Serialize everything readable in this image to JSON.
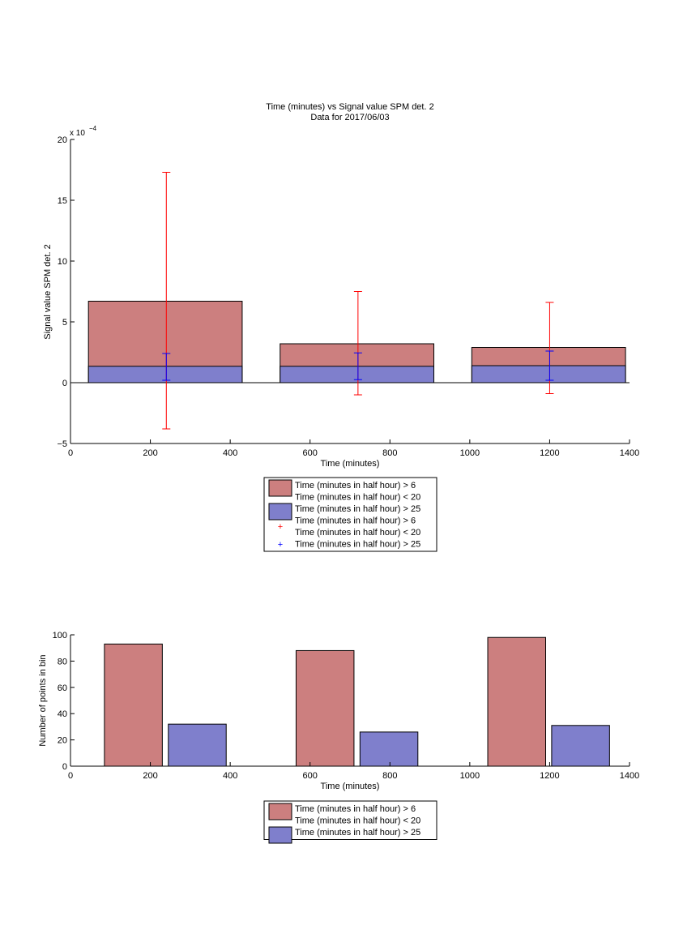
{
  "chart_data": [
    {
      "type": "bar",
      "title": "Time (minutes) vs Signal value SPM det. 2",
      "subtitle": "Data for 2017/06/03",
      "xlabel": "Time (minutes)",
      "ylabel": "Signal value SPM det. 2",
      "exponent_label": "x 10",
      "exponent_power": "−4",
      "xlim": [
        0,
        1400
      ],
      "ylim": [
        -5,
        20
      ],
      "scale_factor": 0.0001,
      "xticks": [
        0,
        200,
        400,
        600,
        800,
        1000,
        1200,
        1400
      ],
      "yticks": [
        -5,
        0,
        5,
        10,
        15,
        20
      ],
      "grid": false,
      "legend_position": "below",
      "series": [
        {
          "name": "Time (minutes in half hour) > 6\nTime (minutes in half hour) < 20",
          "color": "#cc7f7f",
          "bars": [
            {
              "x_start": 45,
              "x_end": 430,
              "value": 6.7
            },
            {
              "x_start": 525,
              "x_end": 910,
              "value": 3.2
            },
            {
              "x_start": 1005,
              "x_end": 1390,
              "value": 2.9
            }
          ]
        },
        {
          "name": "Time (minutes in half hour) > 25",
          "color": "#7f7fcc",
          "bars": [
            {
              "x_start": 45,
              "x_end": 430,
              "value": 1.35
            },
            {
              "x_start": 525,
              "x_end": 910,
              "value": 1.35
            },
            {
              "x_start": 1005,
              "x_end": 1390,
              "value": 1.4
            }
          ]
        }
      ],
      "error_series": [
        {
          "name": "Time (minutes in half hour) > 6\nTime (minutes in half hour) < 20",
          "color": "#ff0000",
          "marker": "+",
          "points": [
            {
              "x": 240,
              "y": 6.7,
              "low": -3.8,
              "high": 17.3
            },
            {
              "x": 720,
              "y": 3.2,
              "low": -1.0,
              "high": 7.5
            },
            {
              "x": 1200,
              "y": 2.9,
              "low": -0.9,
              "high": 6.6
            }
          ]
        },
        {
          "name": "Time (minutes in half hour) > 25",
          "color": "#0000ff",
          "marker": "+",
          "points": [
            {
              "x": 240,
              "y": 1.35,
              "low": 0.2,
              "high": 2.4
            },
            {
              "x": 720,
              "y": 1.35,
              "low": 0.25,
              "high": 2.45
            },
            {
              "x": 1200,
              "y": 1.4,
              "low": 0.2,
              "high": 2.6
            }
          ]
        }
      ]
    },
    {
      "type": "bar",
      "xlabel": "Time (minutes)",
      "ylabel": "Number of points in bin",
      "xlim": [
        0,
        1400
      ],
      "ylim": [
        0,
        100
      ],
      "xticks": [
        0,
        200,
        400,
        600,
        800,
        1000,
        1200,
        1400
      ],
      "yticks": [
        0,
        20,
        40,
        60,
        80,
        100
      ],
      "grid": false,
      "legend_position": "below",
      "series": [
        {
          "name": "Time (minutes in half hour) > 6\nTime (minutes in half hour) < 20",
          "color": "#cc7f7f",
          "bars": [
            {
              "x_start": 85,
              "x_end": 230,
              "value": 93
            },
            {
              "x_start": 565,
              "x_end": 710,
              "value": 88
            },
            {
              "x_start": 1045,
              "x_end": 1190,
              "value": 98
            }
          ]
        },
        {
          "name": "Time (minutes in half hour) > 25",
          "color": "#7f7fcc",
          "bars": [
            {
              "x_start": 245,
              "x_end": 390,
              "value": 32
            },
            {
              "x_start": 725,
              "x_end": 870,
              "value": 26
            },
            {
              "x_start": 1205,
              "x_end": 1350,
              "value": 31
            }
          ]
        }
      ]
    }
  ]
}
